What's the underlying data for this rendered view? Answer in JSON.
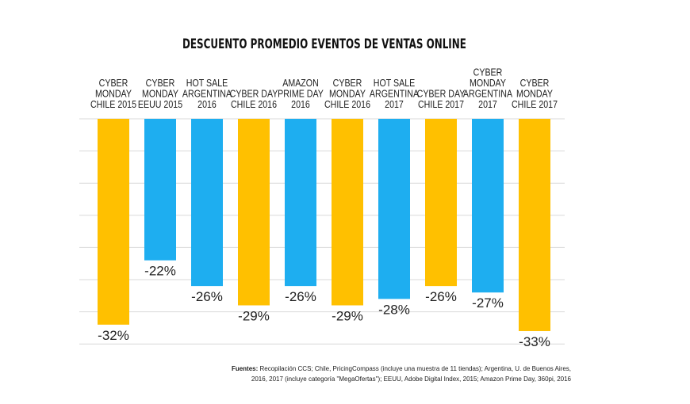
{
  "chart_data": {
    "type": "bar",
    "title": "DESCUENTO PROMEDIO EVENTOS DE VENTAS ONLINE",
    "categories": [
      [
        "CYBER",
        "MONDAY",
        "CHILE 2015"
      ],
      [
        "CYBER",
        "MONDAY",
        "EEUU 2015"
      ],
      [
        "HOT SALE",
        "ARGENTINA",
        "2016"
      ],
      [
        "CYBER DAY",
        "CHILE 2016"
      ],
      [
        "AMAZON",
        "PRIME DAY",
        "2016"
      ],
      [
        "CYBER",
        "MONDAY",
        "CHILE 2016"
      ],
      [
        "HOT SALE",
        "ARGENTINA",
        "2017"
      ],
      [
        "CYBER DAY",
        "CHILE 2017"
      ],
      [
        "CYBER",
        "MONDAY",
        "ARGENTINA",
        "2017"
      ],
      [
        "CYBER",
        "MONDAY",
        "CHILE 2017"
      ]
    ],
    "values": [
      -32,
      -22,
      -26,
      -29,
      -26,
      -29,
      -28,
      -26,
      -27,
      -33
    ],
    "value_labels": [
      "-32%",
      "-22%",
      "-26%",
      "-29%",
      "-26%",
      "-29%",
      "-28%",
      "-26%",
      "-27%",
      "-33%"
    ],
    "bar_colors": [
      "#FFC000",
      "#1EAEF0",
      "#1EAEF0",
      "#FFC000",
      "#1EAEF0",
      "#FFC000",
      "#1EAEF0",
      "#FFC000",
      "#1EAEF0",
      "#FFC000"
    ],
    "colors": {
      "chile": "#FFC000",
      "other": "#1EAEF0",
      "grid": "#d9d9d9"
    },
    "ylim": [
      -35,
      0
    ],
    "grid": true,
    "gridline_values": [
      0,
      -5,
      -10,
      -15,
      -20,
      -25,
      -30,
      -35
    ]
  },
  "footer": {
    "source_label": "Fuentes:",
    "source_line1": " Recopilación  CCS; Chile,  PricingCompass  (incluye una muestra de 11 tiendas);  Argentina, U. de Buenos Aires,",
    "source_line2": "2016, 2017  (incluye categoría  \"MegaOfertas\");  EEUU, Adobe Digital Index,  2015; Amazon Prime Day, 360pi,  2016"
  }
}
